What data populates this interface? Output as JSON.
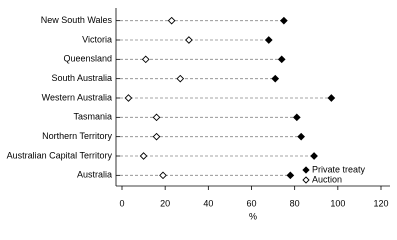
{
  "chart_data": {
    "type": "dot",
    "categories": [
      "New South Wales",
      "Victoria",
      "Queensland",
      "South Australia",
      "Western Australia",
      "Tasmania",
      "Northern Territory",
      "Australian Capital Territory",
      "Australia"
    ],
    "series": [
      {
        "name": "Private treaty",
        "color": "#000000",
        "marker": "filled",
        "values": [
          75,
          68,
          74,
          71,
          97,
          81,
          83,
          89,
          78
        ]
      },
      {
        "name": "Auction",
        "color": "#000000",
        "marker": "hollow",
        "values": [
          23,
          31,
          11,
          27,
          3,
          16,
          16,
          10,
          19
        ]
      }
    ],
    "xlabel": "%",
    "xlim": [
      0,
      120
    ],
    "xticks": [
      0,
      20,
      40,
      60,
      80,
      100,
      120
    ],
    "legend": "lower right"
  }
}
